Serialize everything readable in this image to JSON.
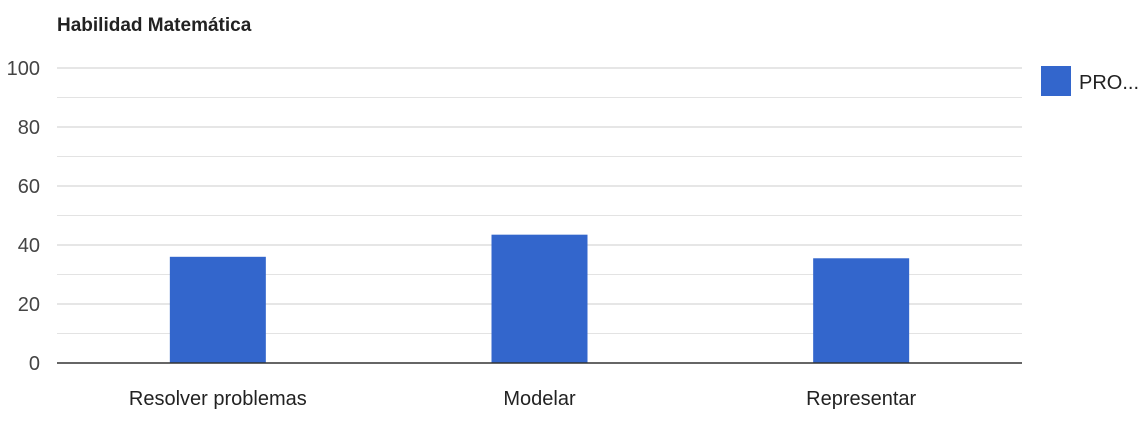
{
  "chart_data": {
    "type": "bar",
    "title": "Habilidad Matemática",
    "xlabel": "",
    "ylabel": "",
    "categories": [
      "Resolver problemas",
      "Modelar",
      "Representar"
    ],
    "series": [
      {
        "name": "PRO...",
        "values": [
          36,
          43.5,
          35.5
        ],
        "color": "#3366cc"
      }
    ],
    "ylim": [
      0,
      100
    ],
    "yticks": [
      0,
      20,
      40,
      60,
      80,
      100
    ],
    "yticks_labels": [
      "0",
      "20",
      "40",
      "60",
      "80",
      "100"
    ],
    "minor_gridlines": true,
    "grid": true,
    "legend_position": "right",
    "colors": {
      "bar": "#3366cc",
      "gridline": "#cccccc",
      "baseline": "#333333"
    }
  }
}
